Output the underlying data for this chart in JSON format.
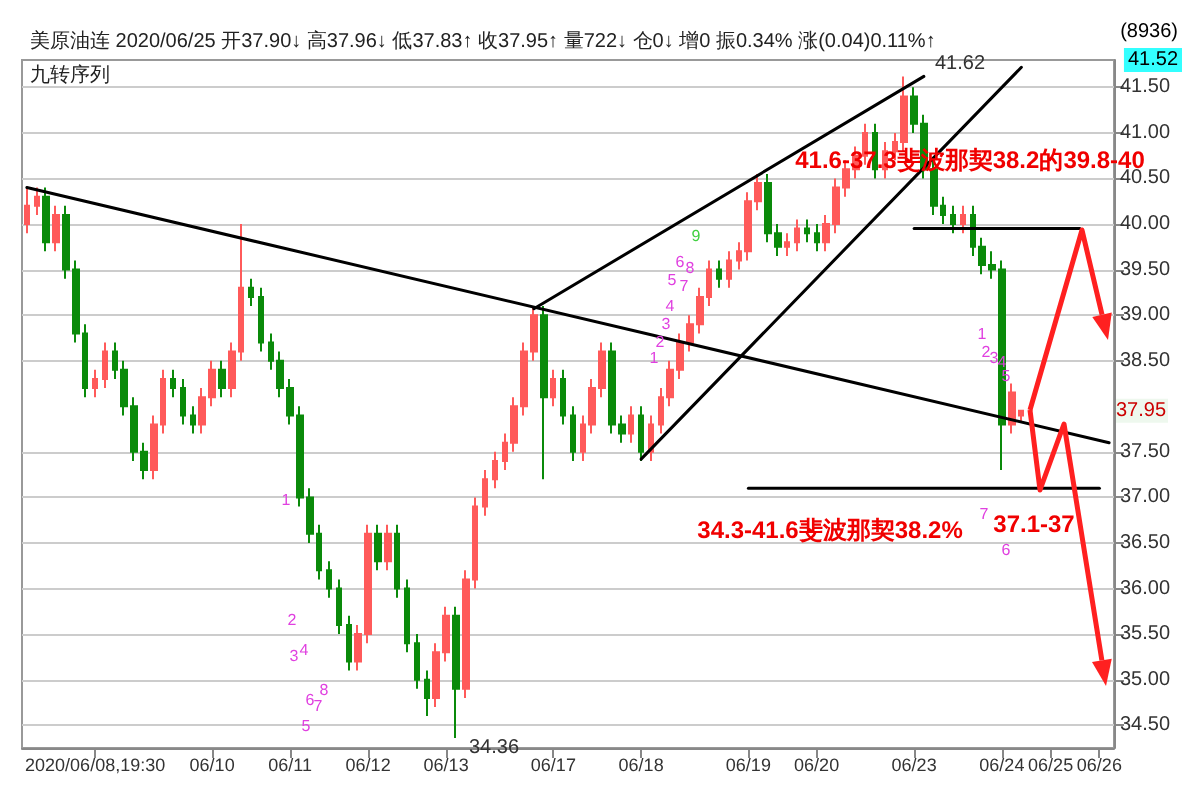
{
  "chart_data": {
    "type": "candlestick",
    "title": "美原油连 2020/06/25 开37.90↓ 高37.96↓ 低37.83↑ 收37.95↑ 量722↓ 仓0↓ 增0 振0.34% 涨(0.04)0.11%↑",
    "subtitle": "九转序列",
    "categories": [
      null,
      null,
      null,
      null,
      null,
      null,
      null,
      "2020/06/08,19:30",
      null,
      null,
      null,
      null,
      null,
      null,
      null,
      null,
      null,
      null,
      null,
      "06/10",
      null,
      null,
      null,
      null,
      null,
      null,
      null,
      "06/11",
      null,
      null,
      null,
      null,
      null,
      null,
      null,
      "06/12",
      null,
      null,
      null,
      null,
      null,
      null,
      null,
      "06/13",
      null,
      null,
      null,
      null,
      null,
      null,
      null,
      null,
      null,
      null,
      "06/17",
      null,
      null,
      null,
      null,
      null,
      null,
      null,
      null,
      "06/18",
      null,
      null,
      null,
      null,
      null,
      null,
      null,
      null,
      null,
      null,
      "06/19",
      null,
      null,
      null,
      null,
      null,
      null,
      "06/20",
      null,
      null,
      null,
      null,
      null,
      null,
      null,
      null,
      null,
      "06/23",
      null,
      null,
      null,
      null,
      null,
      null,
      null,
      null,
      "06/24",
      null,
      null,
      null,
      null,
      "06/25",
      null,
      null,
      null,
      null,
      "06/26",
      null
    ],
    "ohlc": [
      [
        40.0,
        40.4,
        39.9,
        40.2
      ],
      [
        40.2,
        40.4,
        40.1,
        40.3
      ],
      [
        40.3,
        40.4,
        39.7,
        39.8
      ],
      [
        39.8,
        40.2,
        39.7,
        40.1
      ],
      [
        40.1,
        40.2,
        39.4,
        39.5
      ],
      [
        39.5,
        39.6,
        38.7,
        38.8
      ],
      [
        38.8,
        38.9,
        38.1,
        38.2
      ],
      [
        38.2,
        38.4,
        38.1,
        38.3
      ],
      [
        38.3,
        38.7,
        38.2,
        38.6
      ],
      [
        38.6,
        38.7,
        38.3,
        38.4
      ],
      [
        38.4,
        38.5,
        37.9,
        38.0
      ],
      [
        38.0,
        38.1,
        37.4,
        37.5
      ],
      [
        37.5,
        37.6,
        37.2,
        37.3
      ],
      [
        37.3,
        37.9,
        37.2,
        37.8
      ],
      [
        37.8,
        38.4,
        37.7,
        38.3
      ],
      [
        38.3,
        38.4,
        38.1,
        38.2
      ],
      [
        38.2,
        38.3,
        37.8,
        37.9
      ],
      [
        37.9,
        38.0,
        37.7,
        37.8
      ],
      [
        37.8,
        38.2,
        37.7,
        38.1
      ],
      [
        38.1,
        38.5,
        38.0,
        38.4
      ],
      [
        38.4,
        38.5,
        38.1,
        38.2
      ],
      [
        38.2,
        38.7,
        38.1,
        38.6
      ],
      [
        38.6,
        40.0,
        38.5,
        39.3
      ],
      [
        39.3,
        39.4,
        39.1,
        39.2
      ],
      [
        39.2,
        39.3,
        38.6,
        38.7
      ],
      [
        38.7,
        38.8,
        38.4,
        38.5
      ],
      [
        38.5,
        38.6,
        38.1,
        38.2
      ],
      [
        38.2,
        38.3,
        37.8,
        37.9
      ],
      [
        37.9,
        38.0,
        36.9,
        37.0
      ],
      [
        37.0,
        37.1,
        36.5,
        36.6
      ],
      [
        36.6,
        36.7,
        36.1,
        36.2
      ],
      [
        36.2,
        36.3,
        35.9,
        36.0
      ],
      [
        36.0,
        36.1,
        35.5,
        35.6
      ],
      [
        35.6,
        35.7,
        35.1,
        35.2
      ],
      [
        35.2,
        35.6,
        35.1,
        35.5
      ],
      [
        35.5,
        36.7,
        35.4,
        36.6
      ],
      [
        36.6,
        36.7,
        36.2,
        36.3
      ],
      [
        36.3,
        36.7,
        36.2,
        36.6
      ],
      [
        36.6,
        36.7,
        35.9,
        36.0
      ],
      [
        36.0,
        36.1,
        35.3,
        35.4
      ],
      [
        35.4,
        35.5,
        34.9,
        35.0
      ],
      [
        35.0,
        35.1,
        34.6,
        34.8
      ],
      [
        34.8,
        35.4,
        34.7,
        35.3
      ],
      [
        35.3,
        35.8,
        35.2,
        35.7
      ],
      [
        35.7,
        35.8,
        34.36,
        34.9
      ],
      [
        34.9,
        36.2,
        34.8,
        36.1
      ],
      [
        36.1,
        37.0,
        36.0,
        36.9
      ],
      [
        36.9,
        37.3,
        36.8,
        37.2
      ],
      [
        37.2,
        37.5,
        37.1,
        37.4
      ],
      [
        37.4,
        37.7,
        37.3,
        37.6
      ],
      [
        37.6,
        38.1,
        37.5,
        38.0
      ],
      [
        38.0,
        38.7,
        37.9,
        38.6
      ],
      [
        38.6,
        39.1,
        38.5,
        39.0
      ],
      [
        39.0,
        39.1,
        37.2,
        38.1
      ],
      [
        38.1,
        38.4,
        38.0,
        38.3
      ],
      [
        38.3,
        38.4,
        37.8,
        37.9
      ],
      [
        37.9,
        38.0,
        37.4,
        37.5
      ],
      [
        37.5,
        37.9,
        37.4,
        37.8
      ],
      [
        37.8,
        38.3,
        37.7,
        38.2
      ],
      [
        38.2,
        38.7,
        38.1,
        38.6
      ],
      [
        38.6,
        38.7,
        37.7,
        37.8
      ],
      [
        37.8,
        37.9,
        37.6,
        37.7
      ],
      [
        37.7,
        38.0,
        37.6,
        37.9
      ],
      [
        37.9,
        38.0,
        37.4,
        37.5
      ],
      [
        37.5,
        37.9,
        37.4,
        37.8
      ],
      [
        37.8,
        38.2,
        37.7,
        38.1
      ],
      [
        38.1,
        38.5,
        38.0,
        38.4
      ],
      [
        38.4,
        38.8,
        38.3,
        38.7
      ],
      [
        38.7,
        39.0,
        38.6,
        38.9
      ],
      [
        38.9,
        39.3,
        38.8,
        39.2
      ],
      [
        39.2,
        39.6,
        39.1,
        39.5
      ],
      [
        39.5,
        39.6,
        39.3,
        39.4
      ],
      [
        39.4,
        39.7,
        39.3,
        39.6
      ],
      [
        39.6,
        39.8,
        39.5,
        39.7
      ],
      [
        39.7,
        40.35,
        39.6,
        40.25
      ],
      [
        40.25,
        40.55,
        40.15,
        40.45
      ],
      [
        40.45,
        40.55,
        39.8,
        39.9
      ],
      [
        39.9,
        40.0,
        39.65,
        39.75
      ],
      [
        39.75,
        39.9,
        39.65,
        39.8
      ],
      [
        39.8,
        40.05,
        39.7,
        39.95
      ],
      [
        39.95,
        40.05,
        39.8,
        39.9
      ],
      [
        39.9,
        40.0,
        39.7,
        39.8
      ],
      [
        39.8,
        40.1,
        39.7,
        40.0
      ],
      [
        40.0,
        40.5,
        39.9,
        40.4
      ],
      [
        40.4,
        40.7,
        40.3,
        40.6
      ],
      [
        40.6,
        40.85,
        40.5,
        40.75
      ],
      [
        40.75,
        41.1,
        40.65,
        41.0
      ],
      [
        41.0,
        41.1,
        40.5,
        40.6
      ],
      [
        40.6,
        40.9,
        40.5,
        40.8
      ],
      [
        40.8,
        41.0,
        40.7,
        40.9
      ],
      [
        40.9,
        41.62,
        40.8,
        41.4
      ],
      [
        41.4,
        41.5,
        41.0,
        41.1
      ],
      [
        41.1,
        41.2,
        40.5,
        40.6
      ],
      [
        40.6,
        40.7,
        40.1,
        40.2
      ],
      [
        40.2,
        40.3,
        40.0,
        40.1
      ],
      [
        40.1,
        40.2,
        39.9,
        40.0
      ],
      [
        40.0,
        40.2,
        39.9,
        40.1
      ],
      [
        40.1,
        40.2,
        39.65,
        39.75
      ],
      [
        39.75,
        39.85,
        39.45,
        39.55
      ],
      [
        39.55,
        39.7,
        39.4,
        39.5
      ],
      [
        39.5,
        39.6,
        37.3,
        37.8
      ],
      [
        37.8,
        38.25,
        37.7,
        38.15
      ],
      [
        37.9,
        37.96,
        37.83,
        37.95
      ],
      null,
      null,
      null,
      null,
      null,
      null,
      null,
      null,
      null
    ],
    "series": [
      {
        "type": "line",
        "color": "#000000",
        "values": [
          40.4,
          null,
          null,
          null,
          null,
          null,
          null,
          null,
          null,
          null,
          null,
          null,
          null,
          null,
          null,
          null,
          null,
          null,
          null,
          null,
          null,
          null,
          null,
          null,
          null,
          null,
          null,
          null,
          null,
          null,
          null,
          null,
          null,
          null,
          null,
          null,
          null,
          null,
          null,
          null,
          null,
          null,
          null,
          null,
          null,
          null,
          null,
          null,
          null,
          null,
          null,
          null,
          null,
          null,
          null,
          null,
          null,
          null,
          null,
          null,
          null,
          null,
          null,
          null,
          null,
          null,
          null,
          null,
          null,
          null,
          null,
          null,
          null,
          null,
          null,
          null,
          null,
          null,
          null,
          null,
          null,
          null,
          null,
          null,
          null,
          null,
          null,
          null,
          null,
          null,
          null,
          null,
          null,
          null,
          null,
          null,
          null,
          null,
          null,
          null,
          null,
          null,
          null,
          null,
          null,
          null,
          null,
          null,
          null,
          null,
          null,
          37.6
        ]
      },
      {
        "type": "line",
        "color": "#000000",
        "values": [
          null,
          null,
          null,
          null,
          null,
          null,
          null,
          null,
          null,
          null,
          null,
          null,
          null,
          null,
          null,
          null,
          null,
          null,
          null,
          null,
          null,
          null,
          null,
          null,
          null,
          null,
          null,
          null,
          null,
          null,
          null,
          null,
          null,
          null,
          null,
          null,
          null,
          null,
          null,
          null,
          null,
          null,
          null,
          null,
          null,
          null,
          null,
          null,
          null,
          null,
          null,
          null,
          39.07,
          null,
          null,
          null,
          null,
          null,
          null,
          null,
          null,
          null,
          null,
          null,
          null,
          null,
          null,
          null,
          null,
          null,
          null,
          null,
          null,
          null,
          null,
          null,
          null,
          null,
          null,
          null,
          null,
          null,
          null,
          null,
          null,
          null,
          null,
          null,
          null,
          null,
          null,
          null,
          41.62,
          null,
          null,
          null,
          null,
          null,
          null,
          null,
          null,
          null,
          null,
          null,
          null,
          null,
          null,
          null,
          null,
          null,
          null,
          null
        ]
      },
      {
        "type": "line",
        "color": "#000000",
        "values": [
          null,
          null,
          null,
          null,
          null,
          null,
          null,
          null,
          null,
          null,
          null,
          null,
          null,
          null,
          null,
          null,
          null,
          null,
          null,
          null,
          null,
          null,
          null,
          null,
          null,
          null,
          null,
          null,
          null,
          null,
          null,
          null,
          null,
          null,
          null,
          null,
          null,
          null,
          null,
          null,
          null,
          null,
          null,
          null,
          null,
          null,
          null,
          null,
          null,
          null,
          null,
          null,
          null,
          null,
          null,
          null,
          null,
          null,
          null,
          null,
          null,
          null,
          null,
          37.42,
          null,
          null,
          null,
          null,
          null,
          null,
          null,
          null,
          null,
          null,
          null,
          null,
          null,
          null,
          null,
          null,
          null,
          null,
          null,
          null,
          null,
          null,
          null,
          null,
          null,
          null,
          null,
          null,
          null,
          null,
          null,
          null,
          null,
          null,
          null,
          null,
          null,
          null,
          41.72,
          null,
          null,
          null,
          null,
          null,
          null,
          null,
          null,
          null
        ]
      },
      {
        "type": "line",
        "color": "#000000",
        "values": [
          null,
          null,
          null,
          null,
          null,
          null,
          null,
          null,
          null,
          null,
          null,
          null,
          null,
          null,
          null,
          null,
          null,
          null,
          null,
          null,
          null,
          null,
          null,
          null,
          null,
          null,
          null,
          null,
          null,
          null,
          null,
          null,
          null,
          null,
          null,
          null,
          null,
          null,
          null,
          null,
          null,
          null,
          null,
          null,
          null,
          null,
          null,
          null,
          null,
          null,
          null,
          null,
          null,
          null,
          null,
          null,
          null,
          null,
          null,
          null,
          null,
          null,
          null,
          null,
          null,
          null,
          null,
          null,
          null,
          null,
          null,
          null,
          null,
          null,
          null,
          null,
          null,
          null,
          null,
          null,
          null,
          null,
          null,
          null,
          null,
          null,
          null,
          null,
          null,
          null,
          null,
          39.95,
          null,
          null,
          null,
          null,
          null,
          null,
          null,
          null,
          null,
          null,
          null,
          null,
          null,
          null,
          null,
          null,
          39.95,
          null,
          null,
          null
        ]
      },
      {
        "type": "line",
        "color": "#000000",
        "values": [
          null,
          null,
          null,
          null,
          null,
          null,
          null,
          null,
          null,
          null,
          null,
          null,
          null,
          null,
          null,
          null,
          null,
          null,
          null,
          null,
          null,
          null,
          null,
          null,
          null,
          null,
          null,
          null,
          null,
          null,
          null,
          null,
          null,
          null,
          null,
          null,
          null,
          null,
          null,
          null,
          null,
          null,
          null,
          null,
          null,
          null,
          null,
          null,
          null,
          null,
          null,
          null,
          null,
          null,
          null,
          null,
          null,
          null,
          null,
          null,
          null,
          null,
          null,
          null,
          null,
          null,
          null,
          null,
          null,
          null,
          null,
          null,
          null,
          null,
          37.1,
          null,
          null,
          null,
          null,
          null,
          null,
          null,
          null,
          null,
          null,
          null,
          null,
          null,
          null,
          null,
          null,
          null,
          null,
          null,
          null,
          null,
          null,
          null,
          null,
          null,
          null,
          null,
          null,
          null,
          null,
          null,
          null,
          null,
          null,
          null,
          37.1,
          null
        ]
      }
    ],
    "ylim": [
      34.25,
      41.8
    ],
    "yticks": [
      {
        "value": 34.5,
        "label": "34.50"
      },
      {
        "value": 35,
        "label": "35.00"
      },
      {
        "value": 35.5,
        "label": "35.50"
      },
      {
        "value": 36,
        "label": "36.00"
      },
      {
        "value": 36.5,
        "label": "36.50"
      },
      {
        "value": 37,
        "label": "37.00"
      },
      {
        "value": 37.5,
        "label": "37.50"
      },
      {
        "value": 38.5,
        "label": "38.50"
      },
      {
        "value": 39,
        "label": "39.00"
      },
      {
        "value": 39.5,
        "label": "39.50"
      },
      {
        "value": 40,
        "label": "40.00"
      },
      {
        "value": 40.5,
        "label": "40.50"
      },
      {
        "value": 41,
        "label": "41.00"
      },
      {
        "value": 41.5,
        "label": "41.50"
      }
    ],
    "grid": "y",
    "annotations": [
      "(8936)",
      "41.52",
      {
        "text": "37.95",
        "y": 37.95
      },
      "41.6-37.3斐波那契38.2的39.8-40",
      "34.3-41.6斐波那契38.2%",
      "37.1-37",
      "41.62",
      "34.36",
      "1",
      "2",
      "3",
      "4",
      "5",
      "6",
      "7",
      "8",
      "9",
      "1",
      "2",
      "3",
      "4",
      "5",
      "6",
      "7",
      "8",
      "1",
      "2",
      "3",
      "4",
      "5",
      "7",
      "6"
    ]
  }
}
